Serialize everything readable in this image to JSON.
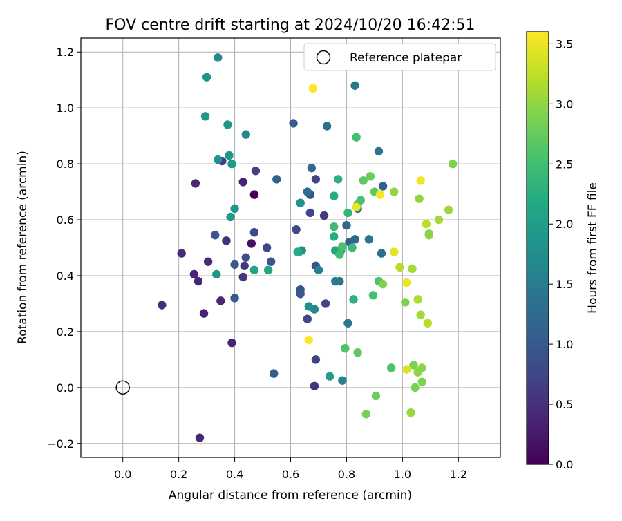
{
  "chart_data": {
    "type": "scatter",
    "title": "FOV centre drift starting at 2024/10/20 16:42:51",
    "xlabel": "Angular distance from reference (arcmin)",
    "ylabel": "Rotation from reference (arcmin)",
    "xlim": [
      -0.15,
      1.35
    ],
    "ylim": [
      -0.25,
      1.25
    ],
    "xticks": [
      "0.0",
      "0.2",
      "0.4",
      "0.6",
      "0.8",
      "1.0",
      "1.2"
    ],
    "yticks": [
      "−0.2",
      "0.0",
      "0.2",
      "0.4",
      "0.6",
      "0.8",
      "1.0",
      "1.2"
    ],
    "grid": true,
    "legend": {
      "location": "top-right",
      "entries": [
        "Reference platepar"
      ]
    },
    "reference_point": {
      "x": 0.0,
      "y": 0.0
    },
    "colorbar": {
      "label": "Hours from first FF file",
      "range": [
        0,
        3.6
      ],
      "ticks": [
        "0.0",
        "0.5",
        "1.0",
        "1.5",
        "2.0",
        "2.5",
        "3.0",
        "3.5"
      ],
      "colormap": "viridis"
    },
    "points": [
      {
        "x": 0.47,
        "y": 0.69,
        "c": 0.0
      },
      {
        "x": 0.46,
        "y": 0.515,
        "c": 0.15
      },
      {
        "x": 0.43,
        "y": 0.735,
        "c": 0.35
      },
      {
        "x": 0.26,
        "y": 0.73,
        "c": 0.4
      },
      {
        "x": 0.21,
        "y": 0.48,
        "c": 0.45
      },
      {
        "x": 0.255,
        "y": 0.405,
        "c": 0.35
      },
      {
        "x": 0.27,
        "y": 0.38,
        "c": 0.4
      },
      {
        "x": 0.14,
        "y": 0.295,
        "c": 0.45
      },
      {
        "x": 0.29,
        "y": 0.265,
        "c": 0.35
      },
      {
        "x": 0.35,
        "y": 0.31,
        "c": 0.4
      },
      {
        "x": 0.39,
        "y": 0.16,
        "c": 0.35
      },
      {
        "x": 0.275,
        "y": -0.18,
        "c": 0.4
      },
      {
        "x": 0.305,
        "y": 0.45,
        "c": 0.45
      },
      {
        "x": 0.37,
        "y": 0.525,
        "c": 0.5
      },
      {
        "x": 0.43,
        "y": 0.395,
        "c": 0.55
      },
      {
        "x": 0.435,
        "y": 0.435,
        "c": 0.6
      },
      {
        "x": 0.355,
        "y": 0.81,
        "c": 0.65
      },
      {
        "x": 0.475,
        "y": 0.775,
        "c": 0.7
      },
      {
        "x": 0.515,
        "y": 0.5,
        "c": 0.75
      },
      {
        "x": 0.47,
        "y": 0.555,
        "c": 0.8
      },
      {
        "x": 0.44,
        "y": 0.465,
        "c": 0.85
      },
      {
        "x": 0.53,
        "y": 0.45,
        "c": 0.9
      },
      {
        "x": 0.33,
        "y": 0.545,
        "c": 0.95
      },
      {
        "x": 0.4,
        "y": 0.44,
        "c": 1.0
      },
      {
        "x": 0.4,
        "y": 0.32,
        "c": 1.05
      },
      {
        "x": 0.54,
        "y": 0.05,
        "c": 1.05
      },
      {
        "x": 0.55,
        "y": 0.745,
        "c": 1.1
      },
      {
        "x": 0.61,
        "y": 0.945,
        "c": 1.0
      },
      {
        "x": 0.62,
        "y": 0.565,
        "c": 0.8
      },
      {
        "x": 0.67,
        "y": 0.625,
        "c": 0.75
      },
      {
        "x": 0.67,
        "y": 0.69,
        "c": 0.9
      },
      {
        "x": 0.69,
        "y": 0.745,
        "c": 0.75
      },
      {
        "x": 0.72,
        "y": 0.615,
        "c": 0.6
      },
      {
        "x": 0.69,
        "y": 0.435,
        "c": 0.85
      },
      {
        "x": 0.635,
        "y": 0.35,
        "c": 0.95
      },
      {
        "x": 0.635,
        "y": 0.335,
        "c": 1.0
      },
      {
        "x": 0.66,
        "y": 0.245,
        "c": 0.8
      },
      {
        "x": 0.725,
        "y": 0.3,
        "c": 0.75
      },
      {
        "x": 0.69,
        "y": 0.1,
        "c": 0.7
      },
      {
        "x": 0.685,
        "y": 0.005,
        "c": 0.55
      },
      {
        "x": 0.675,
        "y": 0.785,
        "c": 1.2
      },
      {
        "x": 0.66,
        "y": 0.7,
        "c": 1.3
      },
      {
        "x": 0.73,
        "y": 0.935,
        "c": 1.3
      },
      {
        "x": 0.83,
        "y": 1.08,
        "c": 1.4
      },
      {
        "x": 0.915,
        "y": 0.845,
        "c": 1.4
      },
      {
        "x": 0.93,
        "y": 0.72,
        "c": 1.1
      },
      {
        "x": 0.8,
        "y": 0.58,
        "c": 1.2
      },
      {
        "x": 0.81,
        "y": 0.52,
        "c": 1.1
      },
      {
        "x": 0.83,
        "y": 0.53,
        "c": 1.2
      },
      {
        "x": 0.84,
        "y": 0.64,
        "c": 1.3
      },
      {
        "x": 0.88,
        "y": 0.53,
        "c": 1.4
      },
      {
        "x": 0.925,
        "y": 0.48,
        "c": 1.3
      },
      {
        "x": 0.775,
        "y": 0.38,
        "c": 1.4
      },
      {
        "x": 0.76,
        "y": 0.38,
        "c": 1.5
      },
      {
        "x": 0.785,
        "y": 0.025,
        "c": 1.6
      },
      {
        "x": 0.805,
        "y": 0.23,
        "c": 1.4
      },
      {
        "x": 0.7,
        "y": 0.42,
        "c": 1.55
      },
      {
        "x": 0.685,
        "y": 0.28,
        "c": 1.65
      },
      {
        "x": 0.665,
        "y": 0.29,
        "c": 1.8
      },
      {
        "x": 0.64,
        "y": 0.49,
        "c": 1.75
      },
      {
        "x": 0.63,
        "y": 0.485,
        "c": 1.9
      },
      {
        "x": 0.635,
        "y": 0.66,
        "c": 1.8
      },
      {
        "x": 0.34,
        "y": 1.18,
        "c": 1.7
      },
      {
        "x": 0.3,
        "y": 1.11,
        "c": 1.8
      },
      {
        "x": 0.295,
        "y": 0.97,
        "c": 1.9
      },
      {
        "x": 0.375,
        "y": 0.94,
        "c": 1.85
      },
      {
        "x": 0.44,
        "y": 0.905,
        "c": 1.65
      },
      {
        "x": 0.38,
        "y": 0.83,
        "c": 1.9
      },
      {
        "x": 0.34,
        "y": 0.815,
        "c": 1.8
      },
      {
        "x": 0.39,
        "y": 0.8,
        "c": 1.95
      },
      {
        "x": 0.4,
        "y": 0.64,
        "c": 1.85
      },
      {
        "x": 0.385,
        "y": 0.61,
        "c": 1.95
      },
      {
        "x": 0.335,
        "y": 0.405,
        "c": 1.85
      },
      {
        "x": 0.47,
        "y": 0.42,
        "c": 2.1
      },
      {
        "x": 0.52,
        "y": 0.42,
        "c": 2.15
      },
      {
        "x": 0.625,
        "y": 0.485,
        "c": 2.2
      },
      {
        "x": 0.74,
        "y": 0.04,
        "c": 2.0
      },
      {
        "x": 0.755,
        "y": 0.685,
        "c": 2.2
      },
      {
        "x": 0.77,
        "y": 0.745,
        "c": 2.3
      },
      {
        "x": 0.76,
        "y": 0.49,
        "c": 2.1
      },
      {
        "x": 0.78,
        "y": 0.49,
        "c": 2.3
      },
      {
        "x": 0.755,
        "y": 0.54,
        "c": 2.2
      },
      {
        "x": 0.805,
        "y": 0.625,
        "c": 2.35
      },
      {
        "x": 0.825,
        "y": 0.315,
        "c": 2.3
      },
      {
        "x": 0.835,
        "y": 0.895,
        "c": 2.5
      },
      {
        "x": 0.775,
        "y": 0.475,
        "c": 2.5
      },
      {
        "x": 0.785,
        "y": 0.505,
        "c": 2.55
      },
      {
        "x": 0.755,
        "y": 0.575,
        "c": 2.45
      },
      {
        "x": 0.82,
        "y": 0.5,
        "c": 2.45
      },
      {
        "x": 0.795,
        "y": 0.14,
        "c": 2.6
      },
      {
        "x": 0.84,
        "y": 0.125,
        "c": 2.7
      },
      {
        "x": 0.85,
        "y": 0.67,
        "c": 2.55
      },
      {
        "x": 0.84,
        "y": 0.655,
        "c": 2.6
      },
      {
        "x": 0.86,
        "y": 0.74,
        "c": 2.7
      },
      {
        "x": 0.885,
        "y": 0.755,
        "c": 2.8
      },
      {
        "x": 0.9,
        "y": 0.7,
        "c": 2.7
      },
      {
        "x": 0.895,
        "y": 0.33,
        "c": 2.55
      },
      {
        "x": 0.915,
        "y": 0.38,
        "c": 2.6
      },
      {
        "x": 0.93,
        "y": 0.37,
        "c": 2.9
      },
      {
        "x": 0.905,
        "y": -0.03,
        "c": 2.8
      },
      {
        "x": 0.87,
        "y": -0.095,
        "c": 2.85
      },
      {
        "x": 0.96,
        "y": 0.07,
        "c": 2.6
      },
      {
        "x": 0.97,
        "y": 0.7,
        "c": 3.0
      },
      {
        "x": 0.99,
        "y": 0.43,
        "c": 3.2
      },
      {
        "x": 1.035,
        "y": 0.425,
        "c": 3.1
      },
      {
        "x": 1.01,
        "y": 0.305,
        "c": 2.9
      },
      {
        "x": 1.055,
        "y": 0.315,
        "c": 3.15
      },
      {
        "x": 1.065,
        "y": 0.26,
        "c": 3.1
      },
      {
        "x": 1.04,
        "y": 0.08,
        "c": 2.9
      },
      {
        "x": 1.055,
        "y": 0.055,
        "c": 3.0
      },
      {
        "x": 1.07,
        "y": 0.07,
        "c": 2.95
      },
      {
        "x": 1.07,
        "y": 0.02,
        "c": 2.9
      },
      {
        "x": 1.045,
        "y": 0.0,
        "c": 2.85
      },
      {
        "x": 1.03,
        "y": -0.09,
        "c": 3.05
      },
      {
        "x": 1.06,
        "y": 0.675,
        "c": 3.0
      },
      {
        "x": 1.085,
        "y": 0.585,
        "c": 3.2
      },
      {
        "x": 1.095,
        "y": 0.545,
        "c": 3.0
      },
      {
        "x": 1.095,
        "y": 0.55,
        "c": 2.95
      },
      {
        "x": 1.13,
        "y": 0.6,
        "c": 3.1
      },
      {
        "x": 1.165,
        "y": 0.635,
        "c": 3.05
      },
      {
        "x": 1.18,
        "y": 0.8,
        "c": 2.9
      },
      {
        "x": 1.09,
        "y": 0.23,
        "c": 3.2
      },
      {
        "x": 0.68,
        "y": 1.07,
        "c": 3.6
      },
      {
        "x": 0.665,
        "y": 0.17,
        "c": 3.6
      },
      {
        "x": 0.835,
        "y": 0.645,
        "c": 3.5
      },
      {
        "x": 0.92,
        "y": 0.69,
        "c": 3.55
      },
      {
        "x": 0.97,
        "y": 0.485,
        "c": 3.45
      },
      {
        "x": 1.015,
        "y": 0.375,
        "c": 3.5
      },
      {
        "x": 1.015,
        "y": 0.065,
        "c": 3.4
      },
      {
        "x": 1.065,
        "y": 0.74,
        "c": 3.55
      }
    ]
  }
}
